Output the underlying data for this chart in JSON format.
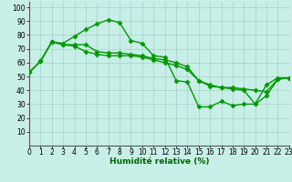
{
  "series": [
    {
      "x": [
        0,
        1,
        2,
        3,
        4,
        5,
        6,
        7,
        8,
        9,
        10,
        11,
        12,
        13,
        14,
        15,
        16,
        17,
        18,
        19,
        20,
        21,
        22,
        23
      ],
      "y": [
        53,
        61,
        75,
        74,
        79,
        84,
        88,
        91,
        89,
        76,
        74,
        65,
        64,
        47,
        46,
        28,
        28,
        32,
        29,
        30,
        30,
        44,
        49,
        49
      ],
      "color": "#009900",
      "marker": "D",
      "markersize": 2.5,
      "linewidth": 1.0
    },
    {
      "x": [
        0,
        1,
        2,
        3,
        4,
        5,
        6,
        7,
        8,
        9,
        10,
        11,
        12,
        13,
        14,
        15,
        16,
        17,
        18,
        19,
        20,
        21,
        22,
        23
      ],
      "y": [
        53,
        61,
        75,
        73,
        73,
        73,
        68,
        67,
        67,
        66,
        65,
        63,
        62,
        60,
        57,
        47,
        44,
        42,
        42,
        41,
        40,
        39,
        48,
        49
      ],
      "color": "#009900",
      "marker": "D",
      "markersize": 2.5,
      "linewidth": 1.0
    },
    {
      "x": [
        0,
        1,
        2,
        3,
        4,
        5,
        6,
        7,
        8,
        9,
        10,
        11,
        12,
        13,
        14,
        15,
        16,
        17,
        18,
        19,
        20,
        21,
        22,
        23
      ],
      "y": [
        53,
        61,
        75,
        73,
        72,
        68,
        66,
        65,
        65,
        65,
        64,
        62,
        60,
        58,
        55,
        47,
        43,
        42,
        41,
        40,
        30,
        36,
        48,
        49
      ],
      "color": "#009900",
      "marker": "D",
      "markersize": 2.5,
      "linewidth": 1.0
    }
  ],
  "xlabel": "Humidité relative (%)",
  "xlim": [
    0,
    23
  ],
  "ylim": [
    0,
    104
  ],
  "yticks": [
    10,
    20,
    30,
    40,
    50,
    60,
    70,
    80,
    90,
    100
  ],
  "xticks": [
    0,
    1,
    2,
    3,
    4,
    5,
    6,
    7,
    8,
    9,
    10,
    11,
    12,
    13,
    14,
    15,
    16,
    17,
    18,
    19,
    20,
    21,
    22,
    23
  ],
  "bg_color": "#c8eee8",
  "grid_color": "#99ccbb",
  "xlabel_color": "#006600",
  "xlabel_fontsize": 6.5,
  "tick_fontsize": 5.5
}
